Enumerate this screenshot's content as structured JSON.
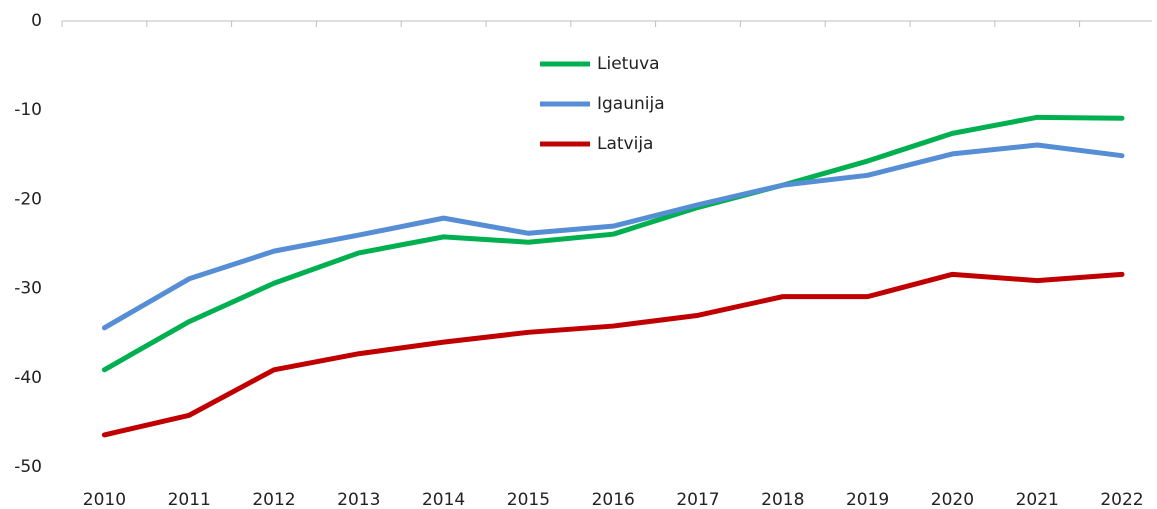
{
  "chart_data": {
    "type": "line",
    "categories": [
      "2010",
      "2011",
      "2012",
      "2013",
      "2014",
      "2015",
      "2016",
      "2017",
      "2018",
      "2019",
      "2020",
      "2021",
      "2022"
    ],
    "series": [
      {
        "name": "Lietuva",
        "color": "#00b050",
        "values": [
          -39.1,
          -33.7,
          -29.4,
          -26.0,
          -24.2,
          -24.8,
          -23.9,
          -20.9,
          -18.4,
          -15.7,
          -12.6,
          -10.8,
          -10.9
        ]
      },
      {
        "name": "Igaunija",
        "color": "#558ed5",
        "values": [
          -34.4,
          -28.9,
          -25.8,
          -24.0,
          -22.1,
          -23.8,
          -23.0,
          -20.6,
          -18.4,
          -17.3,
          -14.9,
          -13.9,
          -15.1
        ]
      },
      {
        "name": "Latvija",
        "color": "#c00000",
        "values": [
          -46.4,
          -44.2,
          -39.1,
          -37.3,
          -36.0,
          -34.9,
          -34.2,
          -33.0,
          -30.9,
          -30.9,
          -28.4,
          -29.1,
          -28.4
        ]
      }
    ],
    "ylim": [
      -50,
      0
    ],
    "yticks": [
      0,
      -10,
      -20,
      -30,
      -40,
      -50
    ],
    "grid": false,
    "legend": "top"
  }
}
